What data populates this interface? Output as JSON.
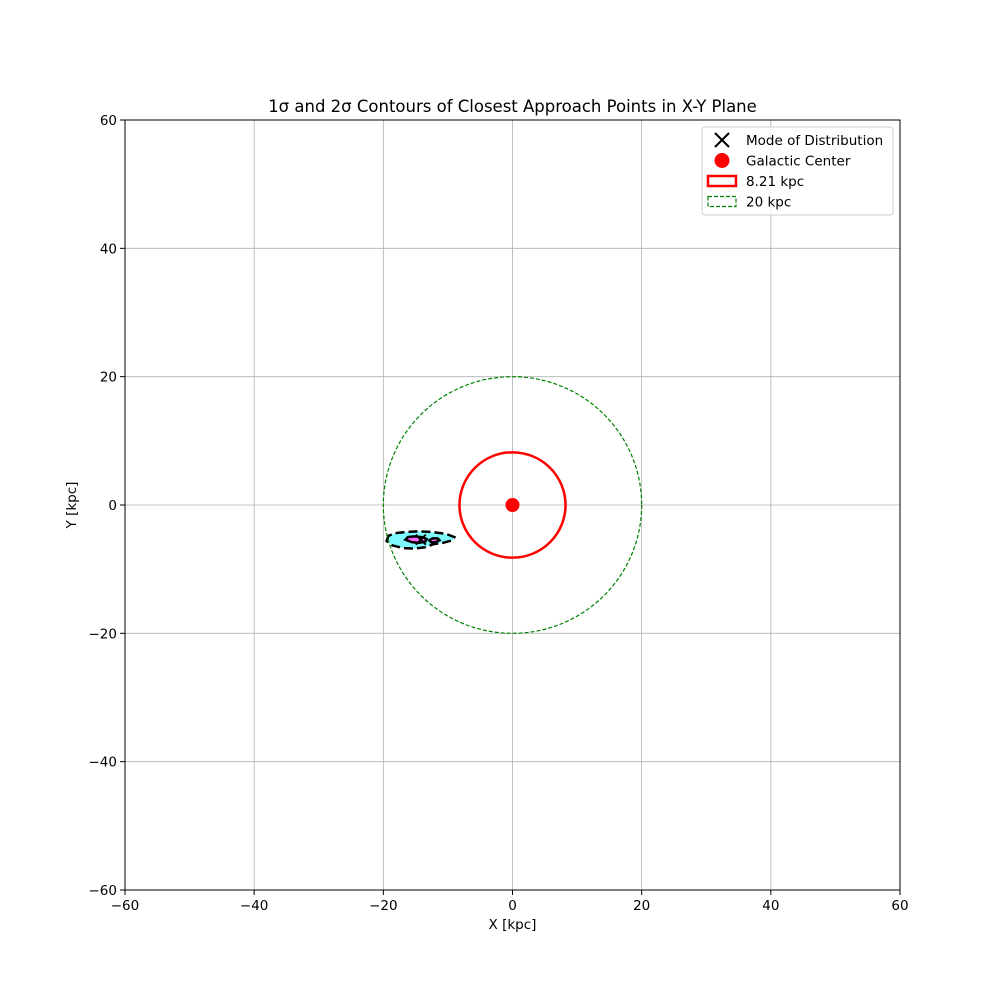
{
  "chart_data": {
    "type": "scatter",
    "title": "1σ and 2σ Contours of Closest Approach Points in X-Y Plane",
    "xlabel": "X [kpc]",
    "ylabel": "Y [kpc]",
    "xlim": [
      -60,
      60
    ],
    "ylim": [
      -60,
      60
    ],
    "grid": true,
    "aspect": "equal",
    "xticks": [
      -60,
      -40,
      -20,
      0,
      20,
      40,
      60
    ],
    "yticks": [
      -60,
      -40,
      -20,
      0,
      20,
      40,
      60
    ],
    "xtick_labels": [
      "−60",
      "−40",
      "−20",
      "0",
      "20",
      "40",
      "60"
    ],
    "ytick_labels": [
      "−60",
      "−40",
      "−20",
      "0",
      "20",
      "40",
      "60"
    ],
    "legend_position": "upper right",
    "legend": [
      {
        "label": "Mode of Distribution",
        "marker": "x",
        "color": "#000000"
      },
      {
        "label": "Galactic Center",
        "marker": "circle",
        "color": "#ff0000"
      },
      {
        "label": "8.21 kpc",
        "marker": "rect-solid",
        "color": "#ff0000"
      },
      {
        "label": "20 kpc",
        "marker": "rect-dashed",
        "color": "#008000"
      }
    ],
    "series": [
      {
        "name": "Mode of Distribution",
        "kind": "point",
        "marker": "x",
        "x": -14.2,
        "y": -5.4,
        "color": "#000000"
      },
      {
        "name": "Galactic Center",
        "kind": "point",
        "marker": "circle",
        "x": 0,
        "y": 0,
        "color": "#ff0000"
      },
      {
        "name": "8.21 kpc",
        "kind": "circle",
        "center": [
          0,
          0
        ],
        "radius": 8.21,
        "color": "#ff0000",
        "linestyle": "solid"
      },
      {
        "name": "20 kpc",
        "kind": "circle",
        "center": [
          0,
          0
        ],
        "radius": 20,
        "color": "#008000",
        "linestyle": "dashed"
      }
    ],
    "contours": [
      {
        "level": "2σ",
        "fill": "#7ffbff",
        "edge": "#000000",
        "linestyle": "dashed",
        "points": [
          [
            -19.5,
            -5.6
          ],
          [
            -19.2,
            -4.8
          ],
          [
            -18.2,
            -4.4
          ],
          [
            -16.5,
            -4.2
          ],
          [
            -14.5,
            -4.1
          ],
          [
            -12.5,
            -4.2
          ],
          [
            -10.3,
            -4.5
          ],
          [
            -9.0,
            -5.0
          ],
          [
            -9.3,
            -5.5
          ],
          [
            -10.8,
            -5.9
          ],
          [
            -12.2,
            -6.1
          ],
          [
            -13.5,
            -6.6
          ],
          [
            -15.2,
            -6.8
          ],
          [
            -17.0,
            -6.7
          ],
          [
            -18.6,
            -6.3
          ]
        ]
      },
      {
        "level": "1σ",
        "fill": "#ff66ff",
        "edge": "#000000",
        "linestyle": "solid",
        "points": [
          [
            -16.6,
            -5.4
          ],
          [
            -16.2,
            -5.0
          ],
          [
            -15.2,
            -4.9
          ],
          [
            -14.0,
            -5.0
          ],
          [
            -13.3,
            -5.3
          ],
          [
            -13.5,
            -5.7
          ],
          [
            -14.5,
            -5.9
          ],
          [
            -15.6,
            -5.8
          ]
        ]
      },
      {
        "level": "1σ",
        "fill": "#ff66ff",
        "edge": "#000000",
        "linestyle": "solid",
        "points": [
          [
            -12.9,
            -5.5
          ],
          [
            -12.4,
            -5.2
          ],
          [
            -11.6,
            -5.2
          ],
          [
            -11.3,
            -5.5
          ],
          [
            -11.9,
            -5.8
          ],
          [
            -12.6,
            -5.8
          ]
        ]
      }
    ]
  }
}
